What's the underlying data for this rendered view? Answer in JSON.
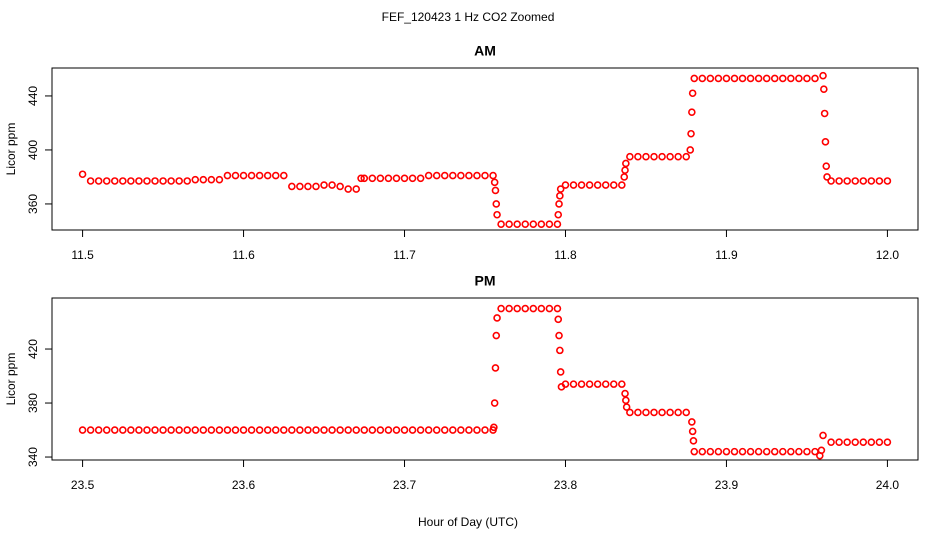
{
  "title": "FEF_120423  1 Hz CO2 Zoomed",
  "xlabel": "Hour of Day (UTC)",
  "chart_data": [
    {
      "type": "scatter",
      "title": "AM",
      "ylabel": "Licor ppm",
      "color": "#ff0000",
      "xlim": [
        11.481,
        12.019
      ],
      "ylim": [
        340.7,
        460.7
      ],
      "xticks": [
        11.5,
        11.6,
        11.7,
        11.8,
        11.9,
        {
          "value": 12,
          "label": "12.0"
        }
      ],
      "yticks": [
        360,
        400,
        440
      ],
      "x": [
        11.5,
        11.505,
        11.51,
        11.515,
        11.52,
        11.525,
        11.53,
        11.535,
        11.54,
        11.545,
        11.55,
        11.555,
        11.56,
        11.565,
        11.57,
        11.575,
        11.58,
        11.585,
        11.59,
        11.595,
        11.6,
        11.605,
        11.61,
        11.615,
        11.62,
        11.625,
        11.63,
        11.635,
        11.64,
        11.645,
        11.65,
        11.655,
        11.66,
        11.665,
        11.67,
        11.673,
        11.675,
        11.68,
        11.685,
        11.69,
        11.695,
        11.7,
        11.705,
        11.71,
        11.715,
        11.72,
        11.725,
        11.73,
        11.735,
        11.74,
        11.745,
        11.75,
        11.755,
        11.756,
        11.7565,
        11.757,
        11.7575,
        11.76,
        11.765,
        11.77,
        11.775,
        11.78,
        11.785,
        11.79,
        11.795,
        11.7955,
        11.796,
        11.7965,
        11.797,
        11.8,
        11.805,
        11.81,
        11.815,
        11.82,
        11.825,
        11.83,
        11.835,
        11.8365,
        11.837,
        11.8375,
        11.84,
        11.845,
        11.85,
        11.855,
        11.86,
        11.865,
        11.87,
        11.875,
        11.8775,
        11.878,
        11.8785,
        11.879,
        11.88,
        11.885,
        11.89,
        11.895,
        11.9,
        11.905,
        11.91,
        11.915,
        11.92,
        11.925,
        11.93,
        11.935,
        11.94,
        11.945,
        11.95,
        11.955,
        11.96,
        11.9605,
        11.961,
        11.9615,
        11.962,
        11.9625,
        11.965,
        11.97,
        11.975,
        11.98,
        11.985,
        11.99,
        11.995,
        12.0
      ],
      "values": [
        382,
        377,
        377,
        377,
        377,
        377,
        377,
        377,
        377,
        377,
        377,
        377,
        377,
        377,
        378,
        378,
        378,
        378,
        381,
        381,
        381,
        381,
        381,
        381,
        381,
        381,
        373,
        373,
        373,
        373,
        374,
        374,
        373,
        371,
        371,
        379,
        379,
        379,
        379,
        379,
        379,
        379,
        379,
        379,
        381,
        381,
        381,
        381,
        381,
        381,
        381,
        381,
        381,
        376,
        370,
        360,
        352,
        345,
        345,
        345,
        345,
        345,
        345,
        345,
        345,
        352,
        360,
        366,
        371,
        374,
        374,
        374,
        374,
        374,
        374,
        374,
        374,
        380,
        385,
        390,
        395,
        395,
        395,
        395,
        395,
        395,
        395,
        395,
        400,
        412,
        428,
        442,
        453,
        453,
        453,
        453,
        453,
        453,
        453,
        453,
        453,
        453,
        453,
        453,
        453,
        453,
        453,
        453,
        455,
        445,
        427,
        406,
        388,
        380,
        377,
        377,
        377,
        377,
        377,
        377,
        377,
        377
      ]
    },
    {
      "type": "scatter",
      "title": "PM",
      "ylabel": "Licor ppm",
      "color": "#ff0000",
      "xlim": [
        23.481,
        24.019
      ],
      "ylim": [
        337.8,
        457.8
      ],
      "xticks": [
        23.5,
        23.6,
        23.7,
        23.8,
        23.9,
        {
          "value": 24,
          "label": "24.0"
        }
      ],
      "yticks": [
        340,
        380,
        420
      ],
      "x": [
        23.5,
        23.505,
        23.51,
        23.515,
        23.52,
        23.525,
        23.53,
        23.535,
        23.54,
        23.545,
        23.55,
        23.555,
        23.56,
        23.565,
        23.57,
        23.575,
        23.58,
        23.585,
        23.59,
        23.595,
        23.6,
        23.605,
        23.61,
        23.615,
        23.62,
        23.625,
        23.63,
        23.635,
        23.64,
        23.645,
        23.65,
        23.655,
        23.66,
        23.665,
        23.67,
        23.675,
        23.68,
        23.685,
        23.69,
        23.695,
        23.7,
        23.705,
        23.71,
        23.715,
        23.72,
        23.725,
        23.73,
        23.735,
        23.74,
        23.745,
        23.75,
        23.755,
        23.7555,
        23.756,
        23.7565,
        23.757,
        23.7575,
        23.76,
        23.765,
        23.77,
        23.775,
        23.78,
        23.785,
        23.79,
        23.795,
        23.7955,
        23.796,
        23.7965,
        23.797,
        23.7975,
        23.8,
        23.805,
        23.81,
        23.815,
        23.82,
        23.825,
        23.83,
        23.835,
        23.837,
        23.8375,
        23.838,
        23.84,
        23.845,
        23.85,
        23.855,
        23.86,
        23.865,
        23.87,
        23.875,
        23.8785,
        23.879,
        23.8795,
        23.88,
        23.885,
        23.89,
        23.895,
        23.9,
        23.905,
        23.91,
        23.915,
        23.92,
        23.925,
        23.93,
        23.935,
        23.94,
        23.945,
        23.95,
        23.955,
        23.958,
        23.959,
        23.96,
        23.965,
        23.97,
        23.975,
        23.98,
        23.985,
        23.99,
        23.995,
        24.0
      ],
      "values": [
        360,
        360,
        360,
        360,
        360,
        360,
        360,
        360,
        360,
        360,
        360,
        360,
        360,
        360,
        360,
        360,
        360,
        360,
        360,
        360,
        360,
        360,
        360,
        360,
        360,
        360,
        360,
        360,
        360,
        360,
        360,
        360,
        360,
        360,
        360,
        360,
        360,
        360,
        360,
        360,
        360,
        360,
        360,
        360,
        360,
        360,
        360,
        360,
        360,
        360,
        360,
        360,
        362,
        380,
        406,
        430,
        443,
        450,
        450,
        450,
        450,
        450,
        450,
        450,
        450,
        442,
        430,
        419,
        403,
        392,
        394,
        394,
        394,
        394,
        394,
        394,
        394,
        394,
        387,
        382,
        377,
        373,
        373,
        373,
        373,
        373,
        373,
        373,
        373,
        366,
        359,
        352,
        344,
        344,
        344,
        344,
        344,
        344,
        344,
        344,
        344,
        344,
        344,
        344,
        344,
        344,
        344,
        344,
        341,
        345,
        356,
        351,
        351,
        351,
        351,
        351,
        351,
        351,
        351
      ]
    }
  ]
}
